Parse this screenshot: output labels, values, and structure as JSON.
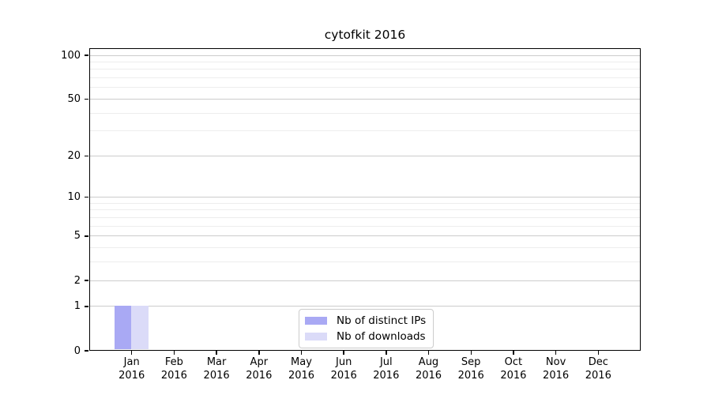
{
  "chart_data": {
    "type": "bar",
    "title": "cytofkit 2016",
    "x_tick_labels": [
      {
        "month": "Jan",
        "year": "2016"
      },
      {
        "month": "Feb",
        "year": "2016"
      },
      {
        "month": "Mar",
        "year": "2016"
      },
      {
        "month": "Apr",
        "year": "2016"
      },
      {
        "month": "May",
        "year": "2016"
      },
      {
        "month": "Jun",
        "year": "2016"
      },
      {
        "month": "Jul",
        "year": "2016"
      },
      {
        "month": "Aug",
        "year": "2016"
      },
      {
        "month": "Sep",
        "year": "2016"
      },
      {
        "month": "Oct",
        "year": "2016"
      },
      {
        "month": "Nov",
        "year": "2016"
      },
      {
        "month": "Dec",
        "year": "2016"
      }
    ],
    "series": [
      {
        "name": "Nb of distinct IPs",
        "color": "#a9a9f4",
        "values": [
          1,
          0,
          0,
          0,
          0,
          0,
          0,
          0,
          0,
          0,
          0,
          0
        ]
      },
      {
        "name": "Nb of downloads",
        "color": "#dbdbf8",
        "values": [
          1,
          0,
          0,
          0,
          0,
          0,
          0,
          0,
          0,
          0,
          0,
          0
        ]
      }
    ],
    "y_axis": {
      "scale": "log1p",
      "tick_values": [
        0,
        1,
        2,
        5,
        10,
        20,
        50,
        100
      ],
      "major_gridline_values": [
        1,
        2,
        5,
        10,
        20,
        50,
        100
      ],
      "minor_gridline_values": [
        3,
        4,
        6,
        7,
        8,
        9,
        30,
        40,
        60,
        70,
        80,
        90
      ],
      "range": [
        0,
        112
      ]
    },
    "legend_position": "lower center inside",
    "grid": true,
    "colors": {
      "major_grid": "#cccccc",
      "minor_grid": "#ededed",
      "axis": "#000000",
      "background": "#ffffff"
    }
  }
}
